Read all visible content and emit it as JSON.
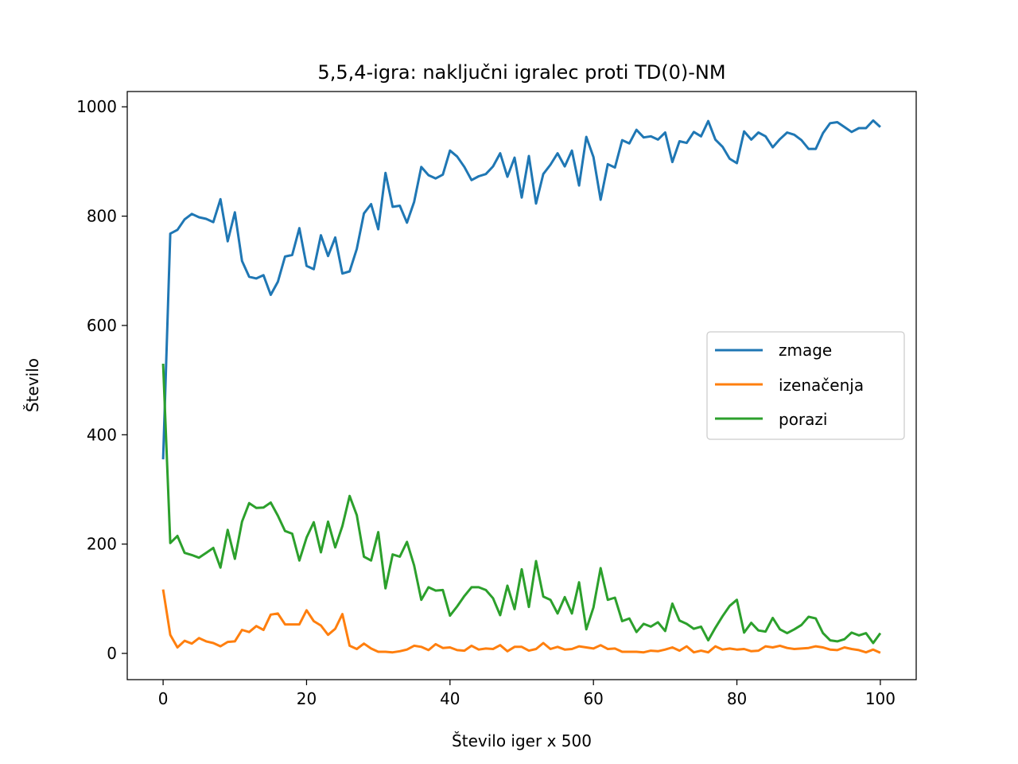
{
  "chart_data": {
    "type": "line",
    "title": "5,5,4-igra: naključni igralec proti TD(0)-NM",
    "xlabel": "Število iger x 500",
    "ylabel": "Število",
    "xlim": [
      -5,
      105
    ],
    "ylim": [
      -48,
      1028
    ],
    "xticks": [
      0,
      20,
      40,
      60,
      80,
      100
    ],
    "yticks": [
      0,
      200,
      400,
      600,
      800,
      1000
    ],
    "grid": false,
    "legend_position": "center-right",
    "series": [
      {
        "name": "zmage",
        "color": "#1f77b4",
        "values": [
          355,
          768,
          775,
          794,
          804,
          798,
          795,
          789,
          831,
          754,
          807,
          718,
          689,
          686,
          692,
          656,
          680,
          726,
          729,
          778,
          709,
          703,
          765,
          727,
          761,
          695,
          699,
          740,
          805,
          822,
          776,
          879,
          817,
          819,
          788,
          826,
          890,
          875,
          869,
          876,
          920,
          909,
          890,
          866,
          873,
          877,
          891,
          915,
          872,
          907,
          834,
          910,
          823,
          877,
          894,
          915,
          891,
          920,
          856,
          945,
          908,
          830,
          895,
          889,
          939,
          933,
          958,
          944,
          946,
          940,
          953,
          899,
          937,
          934,
          954,
          946,
          974,
          940,
          927,
          905,
          897,
          955,
          940,
          953,
          946,
          926,
          941,
          953,
          949,
          939,
          923,
          923,
          952,
          970,
          972,
          963,
          954,
          961,
          961,
          975,
          963
        ]
      },
      {
        "name": "izenačenja",
        "color": "#ff7f0e",
        "values": [
          117,
          34,
          11,
          23,
          18,
          28,
          22,
          19,
          13,
          21,
          22,
          43,
          39,
          50,
          43,
          71,
          73,
          53,
          53,
          53,
          79,
          59,
          51,
          34,
          45,
          72,
          14,
          8,
          18,
          9,
          3,
          3,
          2,
          4,
          7,
          14,
          12,
          6,
          17,
          10,
          11,
          6,
          5,
          14,
          7,
          9,
          8,
          15,
          4,
          12,
          12,
          5,
          8,
          19,
          8,
          12,
          7,
          8,
          13,
          11,
          9,
          15,
          8,
          9,
          3,
          3,
          3,
          2,
          5,
          4,
          7,
          11,
          5,
          13,
          2,
          5,
          2,
          13,
          7,
          9,
          7,
          8,
          4,
          5,
          13,
          11,
          14,
          10,
          8,
          9,
          10,
          13,
          11,
          7,
          6,
          11,
          8,
          6,
          2,
          7,
          1
        ]
      },
      {
        "name": "porazi",
        "color": "#2ca02c",
        "values": [
          530,
          202,
          215,
          184,
          180,
          175,
          184,
          193,
          157,
          226,
          173,
          241,
          275,
          266,
          267,
          276,
          252,
          224,
          219,
          170,
          212,
          240,
          185,
          241,
          194,
          233,
          288,
          253,
          177,
          170,
          222,
          119,
          181,
          177,
          204,
          161,
          98,
          121,
          115,
          116,
          69,
          86,
          105,
          121,
          121,
          116,
          101,
          70,
          124,
          81,
          154,
          85,
          169,
          104,
          98,
          73,
          103,
          73,
          130,
          44,
          84,
          156,
          98,
          102,
          59,
          64,
          39,
          54,
          49,
          57,
          41,
          91,
          60,
          54,
          45,
          49,
          24,
          47,
          68,
          87,
          98,
          38,
          56,
          42,
          40,
          65,
          44,
          37,
          44,
          52,
          67,
          64,
          37,
          24,
          22,
          26,
          38,
          33,
          37,
          19,
          37
        ]
      }
    ]
  }
}
